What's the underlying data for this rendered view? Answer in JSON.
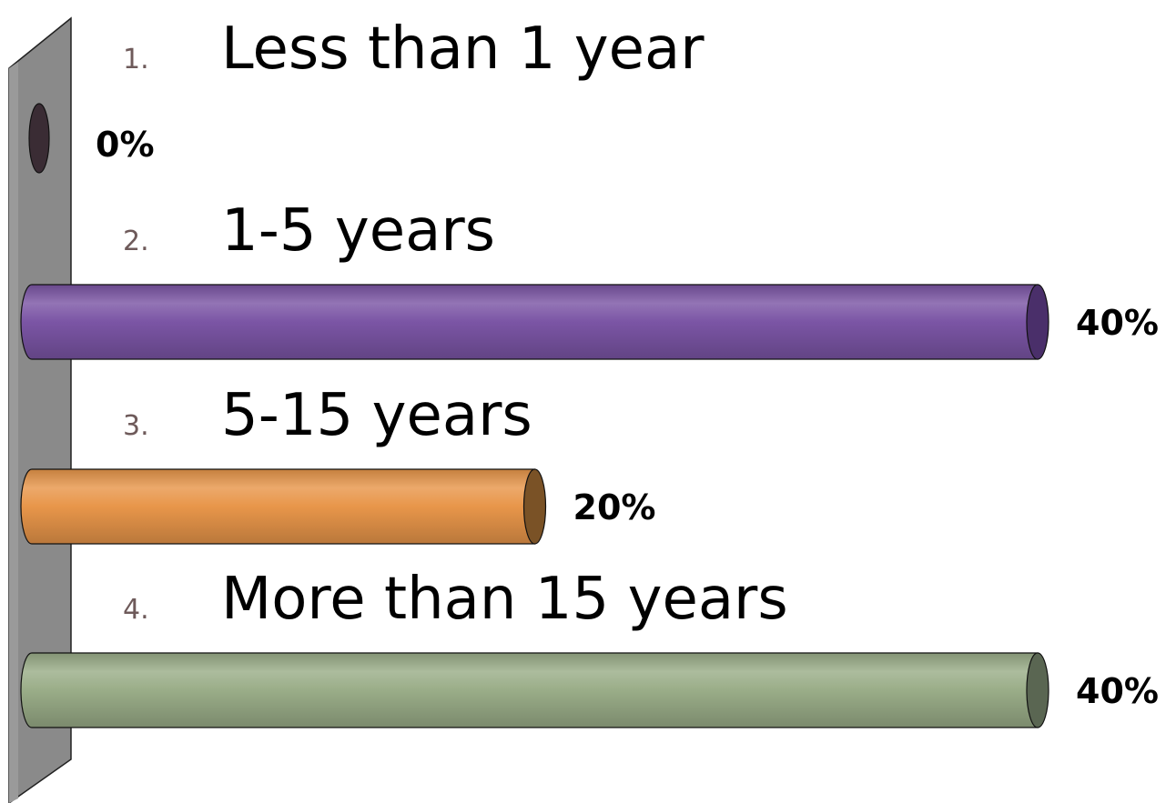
{
  "chart_data": {
    "type": "bar",
    "orientation": "horizontal",
    "categories": [
      {
        "number": "1.",
        "label": "Less than 1 year"
      },
      {
        "number": "2.",
        "label": "1-5 years"
      },
      {
        "number": "3.",
        "label": "5-15 years"
      },
      {
        "number": "4.",
        "label": "More than 15 years"
      }
    ],
    "values": [
      0,
      40,
      20,
      40
    ],
    "value_labels": [
      "0%",
      "40%",
      "20%",
      "40%"
    ],
    "colors": [
      "#4a3a44",
      "#7b55a5",
      "#e8964a",
      "#9aad88"
    ],
    "end_colors": [
      "#3a2c34",
      "#4a2f6a",
      "#7a5226",
      "#5a6652"
    ],
    "xlim": [
      0,
      40
    ],
    "title": "",
    "xlabel": "",
    "ylabel": "",
    "grid": false,
    "legend": "none"
  }
}
